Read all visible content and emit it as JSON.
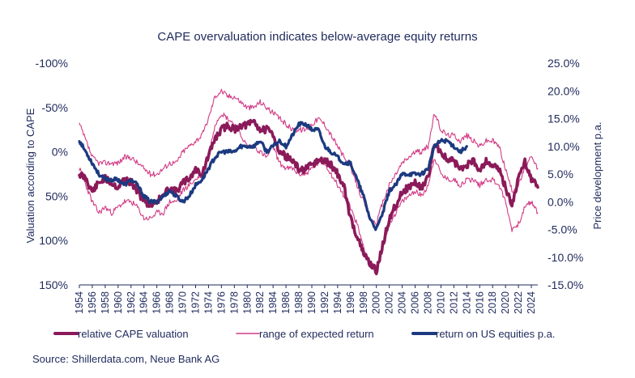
{
  "chart_data": {
    "type": "line",
    "title": "CAPE overvaluation indicates below-average equity returns",
    "source": "Source: Shillerdata.com, Neue Bank AG",
    "left_axis": {
      "label": "Valuation according to CAPE",
      "inverted": true,
      "range": [
        -100,
        150
      ],
      "ticks": [
        "-100%",
        "-50%",
        "0%",
        "50%",
        "100%",
        "150%"
      ],
      "tick_values": [
        -100,
        -50,
        0,
        50,
        100,
        150
      ]
    },
    "right_axis": {
      "label": "Price development p.a.",
      "range": [
        25,
        -15
      ],
      "ticks": [
        "25.0%",
        "20.0%",
        "15.0%",
        "10.0%",
        "5.0%",
        "0.0%",
        "-5.0%",
        "-10.0%",
        "-15.0%"
      ],
      "tick_values": [
        25,
        20,
        15,
        10,
        5,
        0,
        -5,
        -10,
        -15
      ]
    },
    "x_axis": {
      "range": [
        1954,
        2025
      ],
      "ticks": [
        "1954",
        "1956",
        "1958",
        "1960",
        "1962",
        "1964",
        "1966",
        "1968",
        "1970",
        "1972",
        "1974",
        "1976",
        "1978",
        "1980",
        "1982",
        "1984",
        "1986",
        "1988",
        "1990",
        "1992",
        "1994",
        "1996",
        "1998",
        "2000",
        "2002",
        "2004",
        "2006",
        "2008",
        "2010",
        "2012",
        "2014",
        "2016",
        "2018",
        "2020",
        "2022",
        "2024"
      ]
    },
    "x": [
      1954,
      1955,
      1956,
      1957,
      1958,
      1959,
      1960,
      1961,
      1962,
      1963,
      1964,
      1965,
      1966,
      1967,
      1968,
      1969,
      1970,
      1971,
      1972,
      1973,
      1974,
      1975,
      1976,
      1977,
      1978,
      1979,
      1980,
      1981,
      1982,
      1983,
      1984,
      1985,
      1986,
      1987,
      1988,
      1989,
      1990,
      1991,
      1992,
      1993,
      1994,
      1995,
      1996,
      1997,
      1998,
      1999,
      2000,
      2001,
      2002,
      2003,
      2004,
      2005,
      2006,
      2007,
      2008,
      2009,
      2010,
      2011,
      2012,
      2013,
      2014,
      2015,
      2016,
      2017,
      2018,
      2019,
      2020,
      2021,
      2022,
      2023,
      2024,
      2025
    ],
    "series": [
      {
        "name": "relative CAPE valuation",
        "axis": "left",
        "color": "#8b1a5a",
        "values": [
          25,
          30,
          45,
          35,
          30,
          35,
          40,
          30,
          35,
          45,
          55,
          60,
          55,
          50,
          40,
          45,
          35,
          30,
          20,
          25,
          5,
          -15,
          -25,
          -30,
          -25,
          -30,
          -30,
          -35,
          -25,
          -25,
          -20,
          0,
          5,
          10,
          20,
          20,
          15,
          10,
          10,
          15,
          25,
          40,
          75,
          95,
          115,
          125,
          135,
          105,
          75,
          60,
          45,
          40,
          35,
          40,
          30,
          -10,
          0,
          10,
          10,
          20,
          15,
          10,
          20,
          10,
          15,
          20,
          40,
          60,
          30,
          10,
          30,
          40
        ]
      },
      {
        "name": "range of expected return (lower)",
        "axis": "right",
        "color": "#d23b86",
        "values": [
          6,
          3,
          0,
          -2,
          -1,
          -2,
          -1,
          0,
          0,
          -1,
          -3,
          -3,
          -2,
          -2,
          0,
          0,
          2,
          3,
          4,
          5,
          8,
          14,
          16,
          15,
          14,
          12,
          10,
          10,
          9,
          8,
          10,
          7,
          6,
          6,
          5,
          5,
          6,
          7,
          7,
          5,
          3,
          1,
          -1,
          -4,
          -8,
          -11,
          -12,
          -8,
          -4,
          -2,
          0,
          1,
          2,
          1,
          3,
          8,
          5,
          4,
          4,
          3,
          4,
          4,
          3,
          4,
          4,
          3,
          0,
          -5,
          -4,
          -1,
          0,
          -2
        ]
      },
      {
        "name": "range of expected return (upper)",
        "axis": "right",
        "color": "#d23b86",
        "values": [
          14,
          11,
          8,
          7,
          7,
          7,
          7,
          8,
          8,
          7,
          6,
          5,
          5,
          6,
          7,
          7,
          9,
          10,
          11,
          12,
          15,
          19,
          20,
          19,
          19,
          18,
          17,
          17,
          18,
          17,
          16,
          15,
          14,
          13,
          13,
          13,
          14,
          15,
          14,
          12,
          10,
          8,
          6,
          3,
          0,
          -3,
          -4,
          0,
          3,
          5,
          7,
          8,
          9,
          9,
          10,
          16,
          13,
          12,
          12,
          11,
          12,
          11,
          10,
          11,
          11,
          10,
          6,
          2,
          3,
          6,
          8,
          6
        ]
      },
      {
        "name": "return on US equities p.a.",
        "axis": "right",
        "color": "#1c3a80",
        "values": [
          11,
          9,
          7,
          5,
          4,
          4,
          4,
          3,
          4,
          3,
          1,
          0,
          0,
          1,
          2,
          1,
          0,
          1,
          3,
          4,
          6,
          8,
          9,
          9,
          9,
          10,
          10,
          10,
          11,
          9,
          10,
          11,
          10,
          12,
          14,
          14,
          13,
          13,
          10,
          9,
          8,
          7,
          7,
          4,
          1,
          -3,
          -5,
          -2,
          2,
          3,
          5,
          5,
          5,
          5,
          6,
          10,
          11,
          11,
          10,
          9,
          10,
          null,
          null,
          null,
          null,
          null,
          null,
          null,
          null,
          null,
          null,
          null
        ]
      }
    ],
    "legend": [
      {
        "label": "relative CAPE valuation",
        "color": "#8b1a5a",
        "width": 4
      },
      {
        "label": "range of expected return",
        "color": "#d23b86",
        "width": 1.5
      },
      {
        "label": "return on US equities p.a.",
        "color": "#1c3a80",
        "width": 4
      }
    ],
    "legend_position": "bottom"
  }
}
